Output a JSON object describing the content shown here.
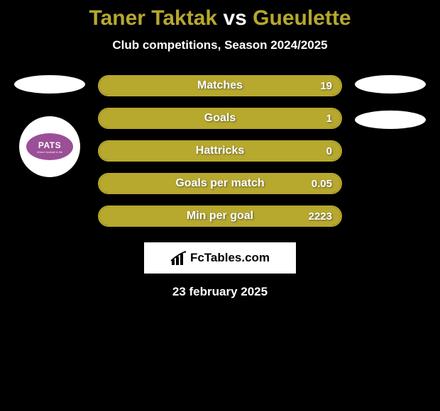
{
  "title": {
    "player1": "Taner Taktak",
    "vs": "vs",
    "player2": "Gueulette",
    "color_player1": "#b7a82e",
    "color_vs": "#ffffff",
    "color_player2": "#b7a82e"
  },
  "subtitle": "Club competitions, Season 2024/2025",
  "bar_style": {
    "border_color": "#b7a82e",
    "fill_color": "#b7a82e",
    "empty_color": "#000000",
    "height": 30,
    "border_radius": 15,
    "border_width": 2,
    "label_fontsize": 16,
    "value_fontsize": 15,
    "text_color": "#ffffff"
  },
  "bars": [
    {
      "label": "Matches",
      "value": "19",
      "fill_pct": 100
    },
    {
      "label": "Goals",
      "value": "1",
      "fill_pct": 100
    },
    {
      "label": "Hattricks",
      "value": "0",
      "fill_pct": 100
    },
    {
      "label": "Goals per match",
      "value": "0.05",
      "fill_pct": 100
    },
    {
      "label": "Min per goal",
      "value": "2223",
      "fill_pct": 100
    }
  ],
  "left_badge": {
    "text": "PATS",
    "sub": "Where football is life",
    "bg": "#9b4f96"
  },
  "logo": {
    "text": "FcTables.com"
  },
  "date": "23 february 2025",
  "colors": {
    "background": "#000000",
    "oval": "#ffffff",
    "logo_box": "#ffffff"
  }
}
